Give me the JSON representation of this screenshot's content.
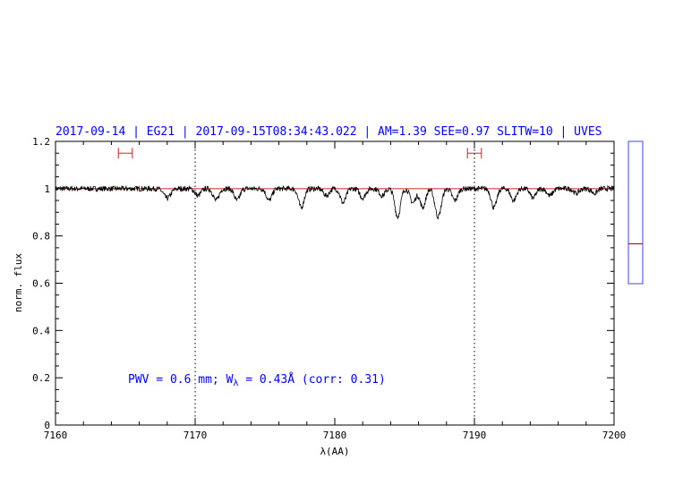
{
  "chart_data": {
    "type": "line",
    "title": "2017-09-14 | EG21 | 2017-09-15T08:34:43.022 | AM=1.39 SEE=0.97 SLITW=10 | UVES",
    "xlabel": "λ(AA)",
    "ylabel": "norm. flux",
    "xlim": [
      7160,
      7200
    ],
    "ylim": [
      0,
      1.2
    ],
    "x_ticks": [
      "7160",
      "7170",
      "7180",
      "7190",
      "7200"
    ],
    "y_ticks": [
      "0",
      "0.2",
      "0.4",
      "0.6",
      "0.8",
      "1",
      "1.2"
    ],
    "annotation": {
      "pwv": "PWV = 0.6 mm; W",
      "sub": "λ",
      "rest": " = 0.43Å (corr: 0.31)"
    },
    "continuum": 1.0,
    "vertical_markers": [
      7170,
      7190
    ],
    "error_bars": [
      {
        "x_min": 7164.5,
        "x_max": 7165.5,
        "y": 1.15
      },
      {
        "x_min": 7189.5,
        "x_max": 7190.5,
        "y": 1.15
      }
    ],
    "absorption_lines": [
      {
        "x": 7168.0,
        "depth": 0.04,
        "width": 0.25
      },
      {
        "x": 7170.2,
        "depth": 0.03,
        "width": 0.2
      },
      {
        "x": 7171.5,
        "depth": 0.05,
        "width": 0.2
      },
      {
        "x": 7173.0,
        "depth": 0.05,
        "width": 0.2
      },
      {
        "x": 7175.3,
        "depth": 0.05,
        "width": 0.2
      },
      {
        "x": 7177.6,
        "depth": 0.08,
        "width": 0.2
      },
      {
        "x": 7179.4,
        "depth": 0.03,
        "width": 0.2
      },
      {
        "x": 7180.6,
        "depth": 0.06,
        "width": 0.2
      },
      {
        "x": 7182.0,
        "depth": 0.04,
        "width": 0.2
      },
      {
        "x": 7183.4,
        "depth": 0.03,
        "width": 0.2
      },
      {
        "x": 7184.5,
        "depth": 0.12,
        "width": 0.2
      },
      {
        "x": 7185.6,
        "depth": 0.06,
        "width": 0.2
      },
      {
        "x": 7186.3,
        "depth": 0.08,
        "width": 0.2
      },
      {
        "x": 7187.4,
        "depth": 0.12,
        "width": 0.22
      },
      {
        "x": 7188.6,
        "depth": 0.05,
        "width": 0.2
      },
      {
        "x": 7191.4,
        "depth": 0.08,
        "width": 0.2
      },
      {
        "x": 7192.8,
        "depth": 0.05,
        "width": 0.2
      },
      {
        "x": 7194.2,
        "depth": 0.04,
        "width": 0.2
      },
      {
        "x": 7195.4,
        "depth": 0.03,
        "width": 0.2
      },
      {
        "x": 7197.3,
        "depth": 0.02,
        "width": 0.2
      },
      {
        "x": 7198.6,
        "depth": 0.02,
        "width": 0.2
      }
    ],
    "side_panel_marker": 0.72,
    "colors": {
      "spectrum": "#000000",
      "continuum": "#d22020",
      "title": "#0000ff",
      "panel": "#4040ff",
      "marker": "#a00000"
    }
  }
}
